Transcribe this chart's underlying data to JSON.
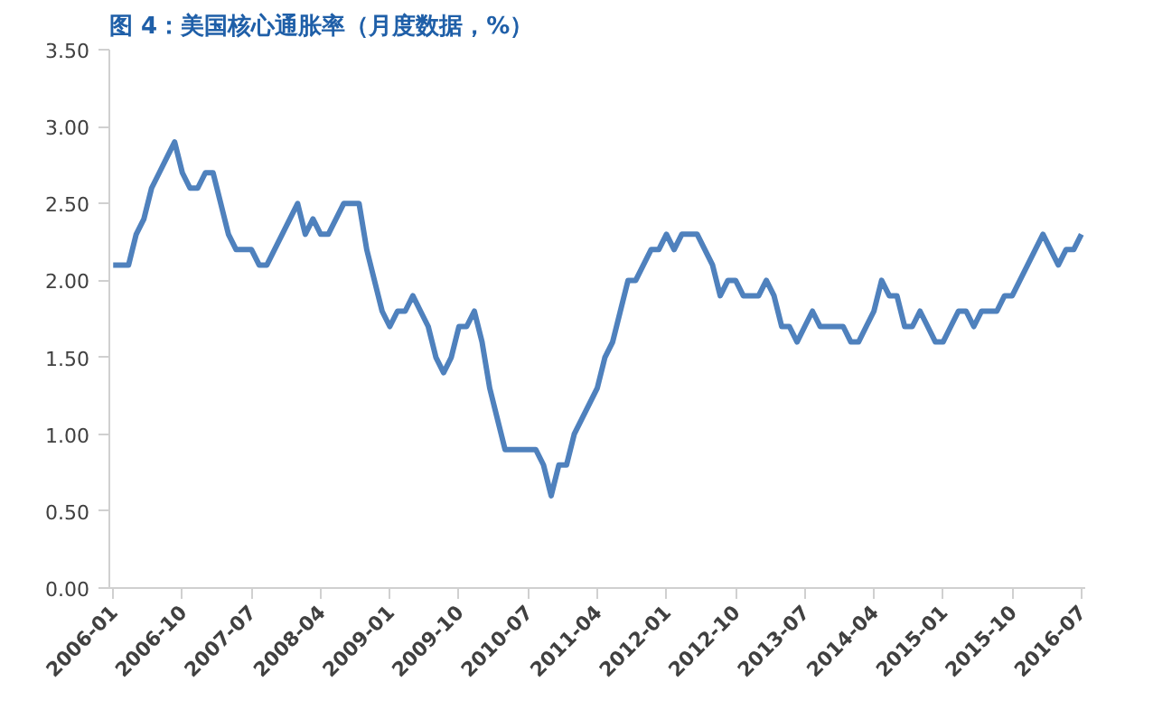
{
  "chart_data": {
    "type": "line",
    "title": "图 4：美国核心通胀率（月度数据，%）",
    "categories": [
      "2006-01",
      null,
      null,
      null,
      null,
      null,
      null,
      null,
      null,
      "2006-10",
      null,
      null,
      null,
      null,
      null,
      null,
      null,
      null,
      "2007-07",
      null,
      null,
      null,
      null,
      null,
      null,
      null,
      null,
      "2008-04",
      null,
      null,
      null,
      null,
      null,
      null,
      null,
      null,
      "2009-01",
      null,
      null,
      null,
      null,
      null,
      null,
      null,
      null,
      "2009-10",
      null,
      null,
      null,
      null,
      null,
      null,
      null,
      null,
      "2010-07",
      null,
      null,
      null,
      null,
      null,
      null,
      null,
      null,
      "2011-04",
      null,
      null,
      null,
      null,
      null,
      null,
      null,
      null,
      "2012-01",
      null,
      null,
      null,
      null,
      null,
      null,
      null,
      null,
      "2012-10",
      null,
      null,
      null,
      null,
      null,
      null,
      null,
      null,
      "2013-07",
      null,
      null,
      null,
      null,
      null,
      null,
      null,
      null,
      "2014-04",
      null,
      null,
      null,
      null,
      null,
      null,
      null,
      null,
      "2015-01",
      null,
      null,
      null,
      null,
      null,
      null,
      null,
      null,
      "2015-10",
      null,
      null,
      null,
      null,
      null,
      null,
      null,
      null,
      "2016-07"
    ],
    "series": [
      {
        "color": "#4f81bd",
        "values": [
          2.1,
          2.1,
          2.1,
          2.3,
          2.4,
          2.6,
          2.7,
          2.8,
          2.9,
          2.7,
          2.6,
          2.6,
          2.7,
          2.7,
          2.5,
          2.3,
          2.2,
          2.2,
          2.2,
          2.1,
          2.1,
          2.2,
          2.3,
          2.4,
          2.5,
          2.3,
          2.4,
          2.3,
          2.3,
          2.4,
          2.5,
          2.5,
          2.5,
          2.2,
          2.0,
          1.8,
          1.7,
          1.8,
          1.8,
          1.9,
          1.8,
          1.7,
          1.5,
          1.4,
          1.5,
          1.7,
          1.7,
          1.8,
          1.6,
          1.3,
          1.1,
          0.9,
          0.9,
          0.9,
          0.9,
          0.9,
          0.8,
          0.6,
          0.8,
          0.8,
          1.0,
          1.1,
          1.2,
          1.3,
          1.5,
          1.6,
          1.8,
          2.0,
          2.0,
          2.1,
          2.2,
          2.2,
          2.3,
          2.2,
          2.3,
          2.3,
          2.3,
          2.2,
          2.1,
          1.9,
          2.0,
          2.0,
          1.9,
          1.9,
          1.9,
          2.0,
          1.9,
          1.7,
          1.7,
          1.6,
          1.7,
          1.8,
          1.7,
          1.7,
          1.7,
          1.7,
          1.6,
          1.6,
          1.7,
          1.8,
          2.0,
          1.9,
          1.9,
          1.7,
          1.7,
          1.8,
          1.7,
          1.6,
          1.6,
          1.7,
          1.8,
          1.8,
          1.7,
          1.8,
          1.8,
          1.8,
          1.9,
          1.9,
          2.0,
          2.1,
          2.2,
          2.3,
          2.2,
          2.1,
          2.2,
          2.2,
          2.3
        ]
      }
    ],
    "ylim": [
      0,
      3.5
    ],
    "yticks": [
      {
        "value": 0,
        "label": "0.00"
      },
      {
        "value": 0.5,
        "label": "0.50"
      },
      {
        "value": 1,
        "label": "1.00"
      },
      {
        "value": 1.5,
        "label": "1.50"
      },
      {
        "value": 2,
        "label": "2.00"
      },
      {
        "value": 2.5,
        "label": "2.50"
      },
      {
        "value": 3,
        "label": "3.00"
      },
      {
        "value": 3.5,
        "label": "3.50"
      }
    ],
    "grid": false,
    "marker": "none",
    "line_style": "solid"
  }
}
